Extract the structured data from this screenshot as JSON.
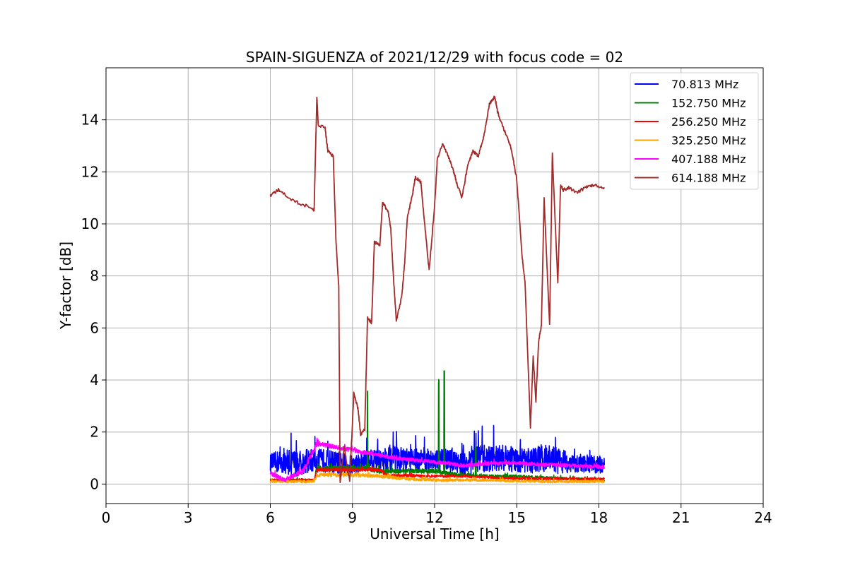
{
  "chart_data": {
    "type": "line",
    "title": "SPAIN-SIGUENZA of 2021/12/29 with focus code = 02",
    "xlabel": "Universal Time [h]",
    "ylabel": "Y-factor [dB]",
    "xlim": [
      0,
      24
    ],
    "ylim": [
      -0.75,
      16
    ],
    "xticks": [
      0,
      3,
      6,
      9,
      12,
      15,
      18,
      21,
      24
    ],
    "yticks": [
      0,
      2,
      4,
      6,
      8,
      10,
      12,
      14
    ],
    "xtick_labels": [
      "0",
      "3",
      "6",
      "9",
      "12",
      "15",
      "18",
      "21",
      "24"
    ],
    "ytick_labels": [
      "0",
      "2",
      "4",
      "6",
      "8",
      "10",
      "12",
      "14"
    ],
    "grid": true,
    "legend_position": "top-right",
    "series": [
      {
        "name": "70.813 MHz",
        "label": "  70.813 MHz",
        "color": "#0000ff",
        "style": "noisy",
        "x": [
          6.0,
          6.5,
          7.0,
          7.5,
          8.0,
          8.5,
          9.0,
          9.5,
          10.0,
          10.5,
          11.0,
          11.5,
          12.0,
          12.5,
          13.0,
          13.5,
          14.0,
          14.5,
          15.0,
          15.5,
          16.0,
          16.5,
          17.0,
          17.5,
          18.2
        ],
        "y": [
          0.8,
          0.9,
          0.8,
          0.9,
          0.9,
          0.8,
          0.7,
          0.9,
          1.0,
          1.0,
          0.9,
          1.0,
          0.9,
          0.9,
          0.8,
          0.9,
          1.0,
          1.0,
          0.9,
          0.9,
          1.0,
          0.9,
          0.8,
          0.8,
          0.7
        ],
        "amp": [
          0.35,
          0.5,
          0.5,
          0.45,
          0.45,
          0.45,
          0.4,
          0.4,
          0.5,
          0.5,
          0.45,
          0.45,
          0.4,
          0.45,
          0.5,
          0.55,
          0.55,
          0.5,
          0.5,
          0.5,
          0.55,
          0.5,
          0.4,
          0.35,
          0.3
        ]
      },
      {
        "name": "152.750 MHz",
        "label": "152.750 MHz",
        "color": "#008000",
        "style": "noisy",
        "x": [
          6.0,
          7.6,
          7.7,
          9.0,
          9.5,
          9.55,
          10.0,
          12.0,
          12.5,
          13.0,
          14.0,
          15.0,
          16.0,
          17.0,
          18.2
        ],
        "y": [
          0.15,
          0.15,
          0.6,
          0.6,
          0.6,
          0.6,
          0.5,
          0.5,
          0.4,
          0.35,
          0.3,
          0.3,
          0.25,
          0.2,
          0.15
        ],
        "amp": [
          0.05,
          0.05,
          0.1,
          0.1,
          0.1,
          0.1,
          0.1,
          0.08,
          0.08,
          0.06,
          0.06,
          0.05,
          0.05,
          0.05,
          0.05
        ],
        "spikes": [
          [
            9.55,
            3.75
          ],
          [
            12.15,
            4.1
          ],
          [
            12.35,
            4.45
          ],
          [
            13.5,
            1.5
          ]
        ]
      },
      {
        "name": "256.250 MHz",
        "label": "256.250 MHz",
        "color": "#ff0000",
        "style": "noisy",
        "x": [
          6.0,
          7.6,
          7.7,
          9.0,
          10.0,
          10.2,
          12.0,
          13.0,
          14.0,
          15.0,
          16.0,
          17.0,
          18.2
        ],
        "y": [
          0.15,
          0.15,
          0.55,
          0.55,
          0.55,
          0.35,
          0.3,
          0.3,
          0.25,
          0.2,
          0.2,
          0.2,
          0.2
        ],
        "amp": [
          0.04,
          0.04,
          0.06,
          0.06,
          0.06,
          0.05,
          0.05,
          0.04,
          0.04,
          0.04,
          0.04,
          0.04,
          0.04
        ]
      },
      {
        "name": "325.250 MHz",
        "label": "325.250 MHz",
        "color": "#ffa500",
        "style": "noisy",
        "x": [
          6.0,
          7.6,
          7.7,
          9.0,
          10.0,
          11.0,
          12.0,
          13.0,
          14.0,
          15.0,
          16.0,
          17.0,
          18.2
        ],
        "y": [
          0.1,
          0.1,
          0.35,
          0.35,
          0.3,
          0.2,
          0.15,
          0.15,
          0.15,
          0.12,
          0.1,
          0.1,
          0.1
        ],
        "amp": [
          0.05,
          0.05,
          0.08,
          0.08,
          0.07,
          0.06,
          0.06,
          0.05,
          0.05,
          0.05,
          0.05,
          0.05,
          0.05
        ]
      },
      {
        "name": "407.188 MHz",
        "label": "407.188 MHz",
        "color": "#ff00ff",
        "style": "noisy",
        "x": [
          6.0,
          6.5,
          7.2,
          7.7,
          8.0,
          8.5,
          9.0,
          9.5,
          10.0,
          10.5,
          11.0,
          11.5,
          12.0,
          12.5,
          13.0,
          14.0,
          15.0,
          16.0,
          17.0,
          18.2
        ],
        "y": [
          0.4,
          0.15,
          0.5,
          1.55,
          1.5,
          1.4,
          1.3,
          1.2,
          1.1,
          1.0,
          0.95,
          0.9,
          0.85,
          0.8,
          0.7,
          0.8,
          0.8,
          0.75,
          0.7,
          0.65
        ],
        "amp": [
          0.12,
          0.08,
          0.1,
          0.1,
          0.08,
          0.08,
          0.08,
          0.08,
          0.07,
          0.07,
          0.07,
          0.07,
          0.07,
          0.07,
          0.07,
          0.07,
          0.07,
          0.07,
          0.07,
          0.07
        ]
      },
      {
        "name": "614.188 MHz",
        "label": "614.188 MHz",
        "color": "#a52a2a",
        "style": "line",
        "x": [
          6.0,
          6.3,
          6.8,
          7.3,
          7.6,
          7.7,
          7.75,
          8.0,
          8.1,
          8.3,
          8.4,
          8.5,
          8.55,
          8.7,
          8.9,
          9.05,
          9.2,
          9.3,
          9.45,
          9.55,
          9.7,
          9.8,
          10.0,
          10.1,
          10.3,
          10.4,
          10.5,
          10.6,
          10.8,
          10.9,
          11.0,
          11.2,
          11.3,
          11.5,
          11.6,
          11.8,
          12.0,
          12.1,
          12.3,
          12.5,
          12.7,
          12.8,
          13.0,
          13.2,
          13.4,
          13.6,
          13.8,
          14.0,
          14.2,
          14.3,
          14.5,
          14.7,
          14.8,
          15.0,
          15.2,
          15.3,
          15.5,
          15.6,
          15.7,
          15.8,
          15.9,
          16.0,
          16.05,
          16.2,
          16.3,
          16.5,
          16.6,
          16.7,
          16.9,
          17.2,
          17.5,
          17.8,
          18.2
        ],
        "y": [
          11.1,
          11.3,
          10.9,
          10.7,
          10.5,
          14.9,
          13.8,
          13.7,
          12.8,
          12.6,
          9.3,
          7.6,
          0.1,
          1.4,
          0.1,
          3.5,
          2.9,
          1.9,
          2.1,
          6.4,
          6.2,
          9.3,
          9.2,
          10.8,
          10.5,
          9.8,
          7.9,
          6.3,
          7.2,
          8.4,
          10.2,
          11.2,
          11.8,
          11.6,
          10.4,
          8.2,
          10.7,
          12.5,
          13.1,
          12.6,
          12.0,
          11.6,
          11.0,
          12.2,
          12.8,
          12.6,
          13.4,
          14.6,
          14.9,
          14.3,
          13.7,
          13.2,
          12.9,
          11.7,
          8.7,
          7.8,
          2.2,
          4.9,
          3.2,
          5.5,
          6.1,
          11.0,
          9.7,
          6.1,
          12.7,
          7.7,
          11.5,
          11.3,
          11.4,
          11.2,
          11.4,
          11.5,
          11.4
        ]
      }
    ]
  }
}
